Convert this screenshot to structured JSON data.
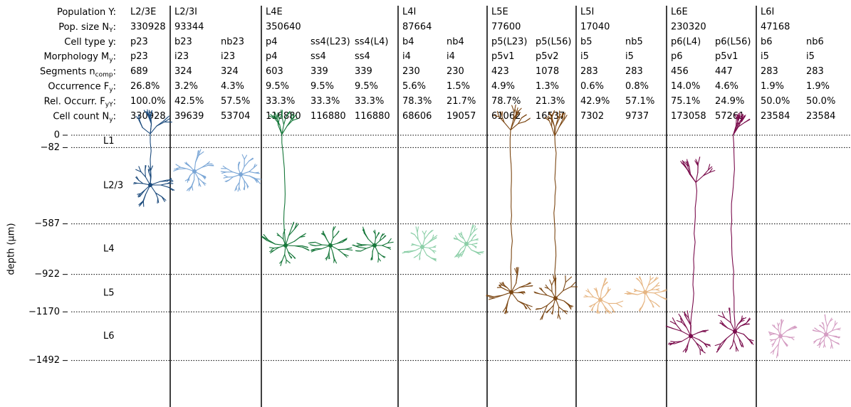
{
  "row_labels": [
    {
      "text": "Population Y:"
    },
    {
      "text": "Pop. size N",
      "sub": "Y",
      "after": ":"
    },
    {
      "text": "Cell type y:"
    },
    {
      "text": "Morphology M",
      "sub": "y",
      "after": ":"
    },
    {
      "text": "Segments n",
      "sub": "comp",
      "after": ":"
    },
    {
      "text": "Occurrence F",
      "sub": "y",
      "after": ":"
    },
    {
      "text": "Rel. Occurr. F",
      "sub": "yY",
      "after": ":"
    },
    {
      "text": "Cell count N",
      "sub": "y",
      "after": ":"
    }
  ],
  "populations": [
    {
      "name": "L2/3E",
      "size": 330928,
      "color": "#1b4a7c",
      "cells": [
        {
          "type": "p23",
          "morphology": "p23",
          "segments": 689,
          "occurrence": "26.8%",
          "rel_occurrence": "100.0%",
          "count": 330928
        }
      ]
    },
    {
      "name": "L2/3I",
      "size": 93344,
      "color": "#7aa6d6",
      "cells": [
        {
          "type": "b23",
          "morphology": "i23",
          "segments": 324,
          "occurrence": "3.2%",
          "rel_occurrence": "42.5%",
          "count": 39639
        },
        {
          "type": "nb23",
          "morphology": "i23",
          "segments": 324,
          "occurrence": "4.3%",
          "rel_occurrence": "57.5%",
          "count": 53704
        }
      ]
    },
    {
      "name": "L4E",
      "size": 350640,
      "color": "#16773a",
      "cells": [
        {
          "type": "p4",
          "morphology": "p4",
          "segments": 603,
          "occurrence": "9.5%",
          "rel_occurrence": "33.3%",
          "count": 116880
        },
        {
          "type": "ss4(L23)",
          "morphology": "ss4",
          "segments": 339,
          "occurrence": "9.5%",
          "rel_occurrence": "33.3%",
          "count": 116880
        },
        {
          "type": "ss4(L4)",
          "morphology": "ss4",
          "segments": 339,
          "occurrence": "9.5%",
          "rel_occurrence": "33.3%",
          "count": 116880
        }
      ]
    },
    {
      "name": "L4I",
      "size": 87664,
      "color": "#8ccfa8",
      "cells": [
        {
          "type": "b4",
          "morphology": "i4",
          "segments": 230,
          "occurrence": "5.6%",
          "rel_occurrence": "78.3%",
          "count": 68606
        },
        {
          "type": "nb4",
          "morphology": "i4",
          "segments": 230,
          "occurrence": "1.5%",
          "rel_occurrence": "21.7%",
          "count": 19057
        }
      ]
    },
    {
      "name": "L5E",
      "size": 77600,
      "color": "#7b4612",
      "cells": [
        {
          "type": "p5(L23)",
          "morphology": "p5v1",
          "segments": 423,
          "occurrence": "4.9%",
          "rel_occurrence": "78.7%",
          "count": 61062
        },
        {
          "type": "p5(L56)",
          "morphology": "p5v2",
          "segments": 1078,
          "occurrence": "1.3%",
          "rel_occurrence": "21.3%",
          "count": 16537
        }
      ]
    },
    {
      "name": "L5I",
      "size": 17040,
      "color": "#e6b582",
      "cells": [
        {
          "type": "b5",
          "morphology": "i5",
          "segments": 283,
          "occurrence": "0.6%",
          "rel_occurrence": "42.9%",
          "count": 7302
        },
        {
          "type": "nb5",
          "morphology": "i5",
          "segments": 283,
          "occurrence": "0.8%",
          "rel_occurrence": "57.1%",
          "count": 9737
        }
      ]
    },
    {
      "name": "L6E",
      "size": 230320,
      "color": "#7a0c4c",
      "cells": [
        {
          "type": "p6(L4)",
          "morphology": "p6",
          "segments": 456,
          "occurrence": "14.0%",
          "rel_occurrence": "75.1%",
          "count": 173058
        },
        {
          "type": "p6(L56)",
          "morphology": "p5v1",
          "segments": 447,
          "occurrence": "4.6%",
          "rel_occurrence": "24.9%",
          "count": 57261
        }
      ]
    },
    {
      "name": "L6I",
      "size": 47168,
      "color": "#d49cc2",
      "cells": [
        {
          "type": "b6",
          "morphology": "i5",
          "segments": 283,
          "occurrence": "1.9%",
          "rel_occurrence": "50.0%",
          "count": 23584
        },
        {
          "type": "nb6",
          "morphology": "i5",
          "segments": 283,
          "occurrence": "1.9%",
          "rel_occurrence": "50.0%",
          "count": 23584
        }
      ]
    }
  ],
  "depth_axis": {
    "label": "depth (µm)",
    "ylim": [
      0,
      -1800
    ],
    "ticks": [
      {
        "value": 0,
        "label": "0"
      },
      {
        "value": -82,
        "label": "−82"
      },
      {
        "value": -587,
        "label": "−587"
      },
      {
        "value": -922,
        "label": "−922"
      },
      {
        "value": -1170,
        "label": "−1170"
      },
      {
        "value": -1492,
        "label": "−1492"
      }
    ],
    "layers": [
      "L1",
      "L2/3",
      "L4",
      "L5",
      "L6"
    ]
  }
}
